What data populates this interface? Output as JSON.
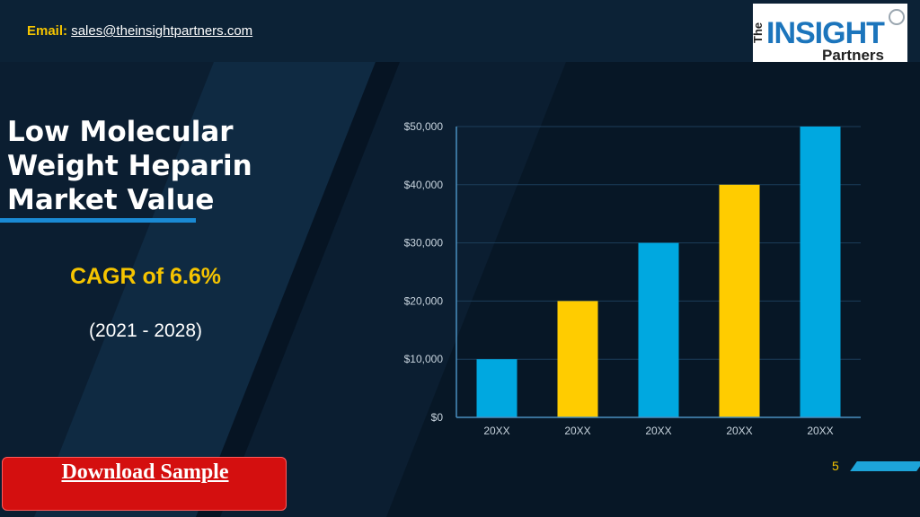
{
  "header": {
    "email_label": "Email:",
    "email_address": "sales@theinsightpartners.com"
  },
  "logo": {
    "line1": "The",
    "line2": "INSIGHT",
    "line3": "Partners"
  },
  "main": {
    "title": "Low Molecular Weight Heparin Market Value",
    "cagr": "CAGR of  6.6%",
    "years": "(2021 - 2028)",
    "download_label": "Download Sample",
    "page_number": "5"
  },
  "colors": {
    "blue_bar": "#00a8e0",
    "yellow_bar": "#ffcc00",
    "accent": "#f5c400"
  },
  "chart_data": {
    "type": "bar",
    "categories": [
      "20XX",
      "20XX",
      "20XX",
      "20XX",
      "20XX"
    ],
    "values": [
      10000,
      20000,
      30000,
      40000,
      50000
    ],
    "bar_colors": [
      "#00a8e0",
      "#ffcc00",
      "#00a8e0",
      "#ffcc00",
      "#00a8e0"
    ],
    "title": "",
    "xlabel": "",
    "ylabel": "",
    "ylim": [
      0,
      50000
    ],
    "yticks": [
      0,
      10000,
      20000,
      30000,
      40000,
      50000
    ],
    "ytick_labels": [
      "$0",
      "$10,000",
      "$20,000",
      "$30,000",
      "$40,000",
      "$50,000"
    ],
    "grid": true,
    "legend": false
  }
}
